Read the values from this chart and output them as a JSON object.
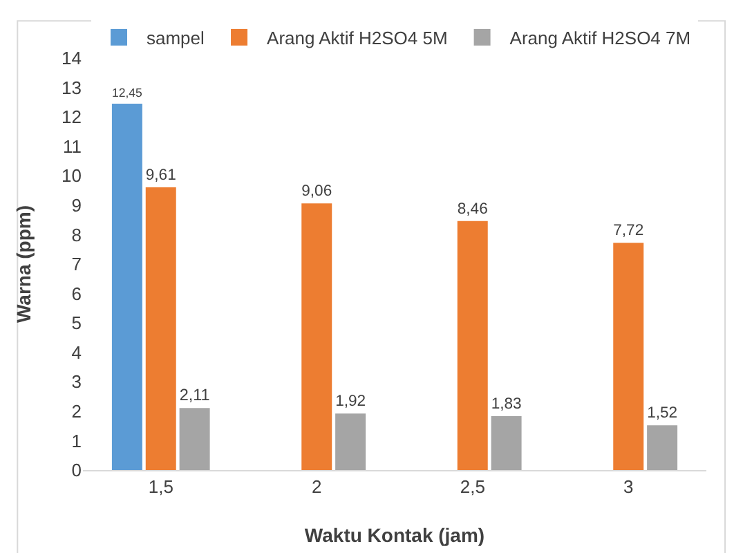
{
  "chart_data": {
    "type": "bar",
    "xlabel": "Waktu Kontak (jam)",
    "ylabel": "Warna (ppm)",
    "categories": [
      "1,5",
      "2",
      "2,5",
      "3"
    ],
    "series": [
      {
        "name": "sampel",
        "color": "#5b9bd5",
        "values": [
          12.45,
          null,
          null,
          null
        ],
        "value_labels": [
          "12,45",
          null,
          null,
          null
        ]
      },
      {
        "name": "Arang Aktif H2SO4 5M",
        "color": "#ed7d31",
        "values": [
          9.61,
          9.06,
          8.46,
          7.72
        ],
        "value_labels": [
          "9,61",
          "9,06",
          "8,46",
          "7,72"
        ]
      },
      {
        "name": "Arang Aktif H2SO4 7M",
        "color": "#a5a5a5",
        "values": [
          2.11,
          1.92,
          1.83,
          1.52
        ],
        "value_labels": [
          "2,11",
          "1,92",
          "1,83",
          "1,52"
        ]
      }
    ],
    "ylim": [
      0,
      14
    ],
    "yticks": [
      0,
      1,
      2,
      3,
      4,
      5,
      6,
      7,
      8,
      9,
      10,
      11,
      12,
      13,
      14
    ],
    "grid": false,
    "legend": "top"
  }
}
